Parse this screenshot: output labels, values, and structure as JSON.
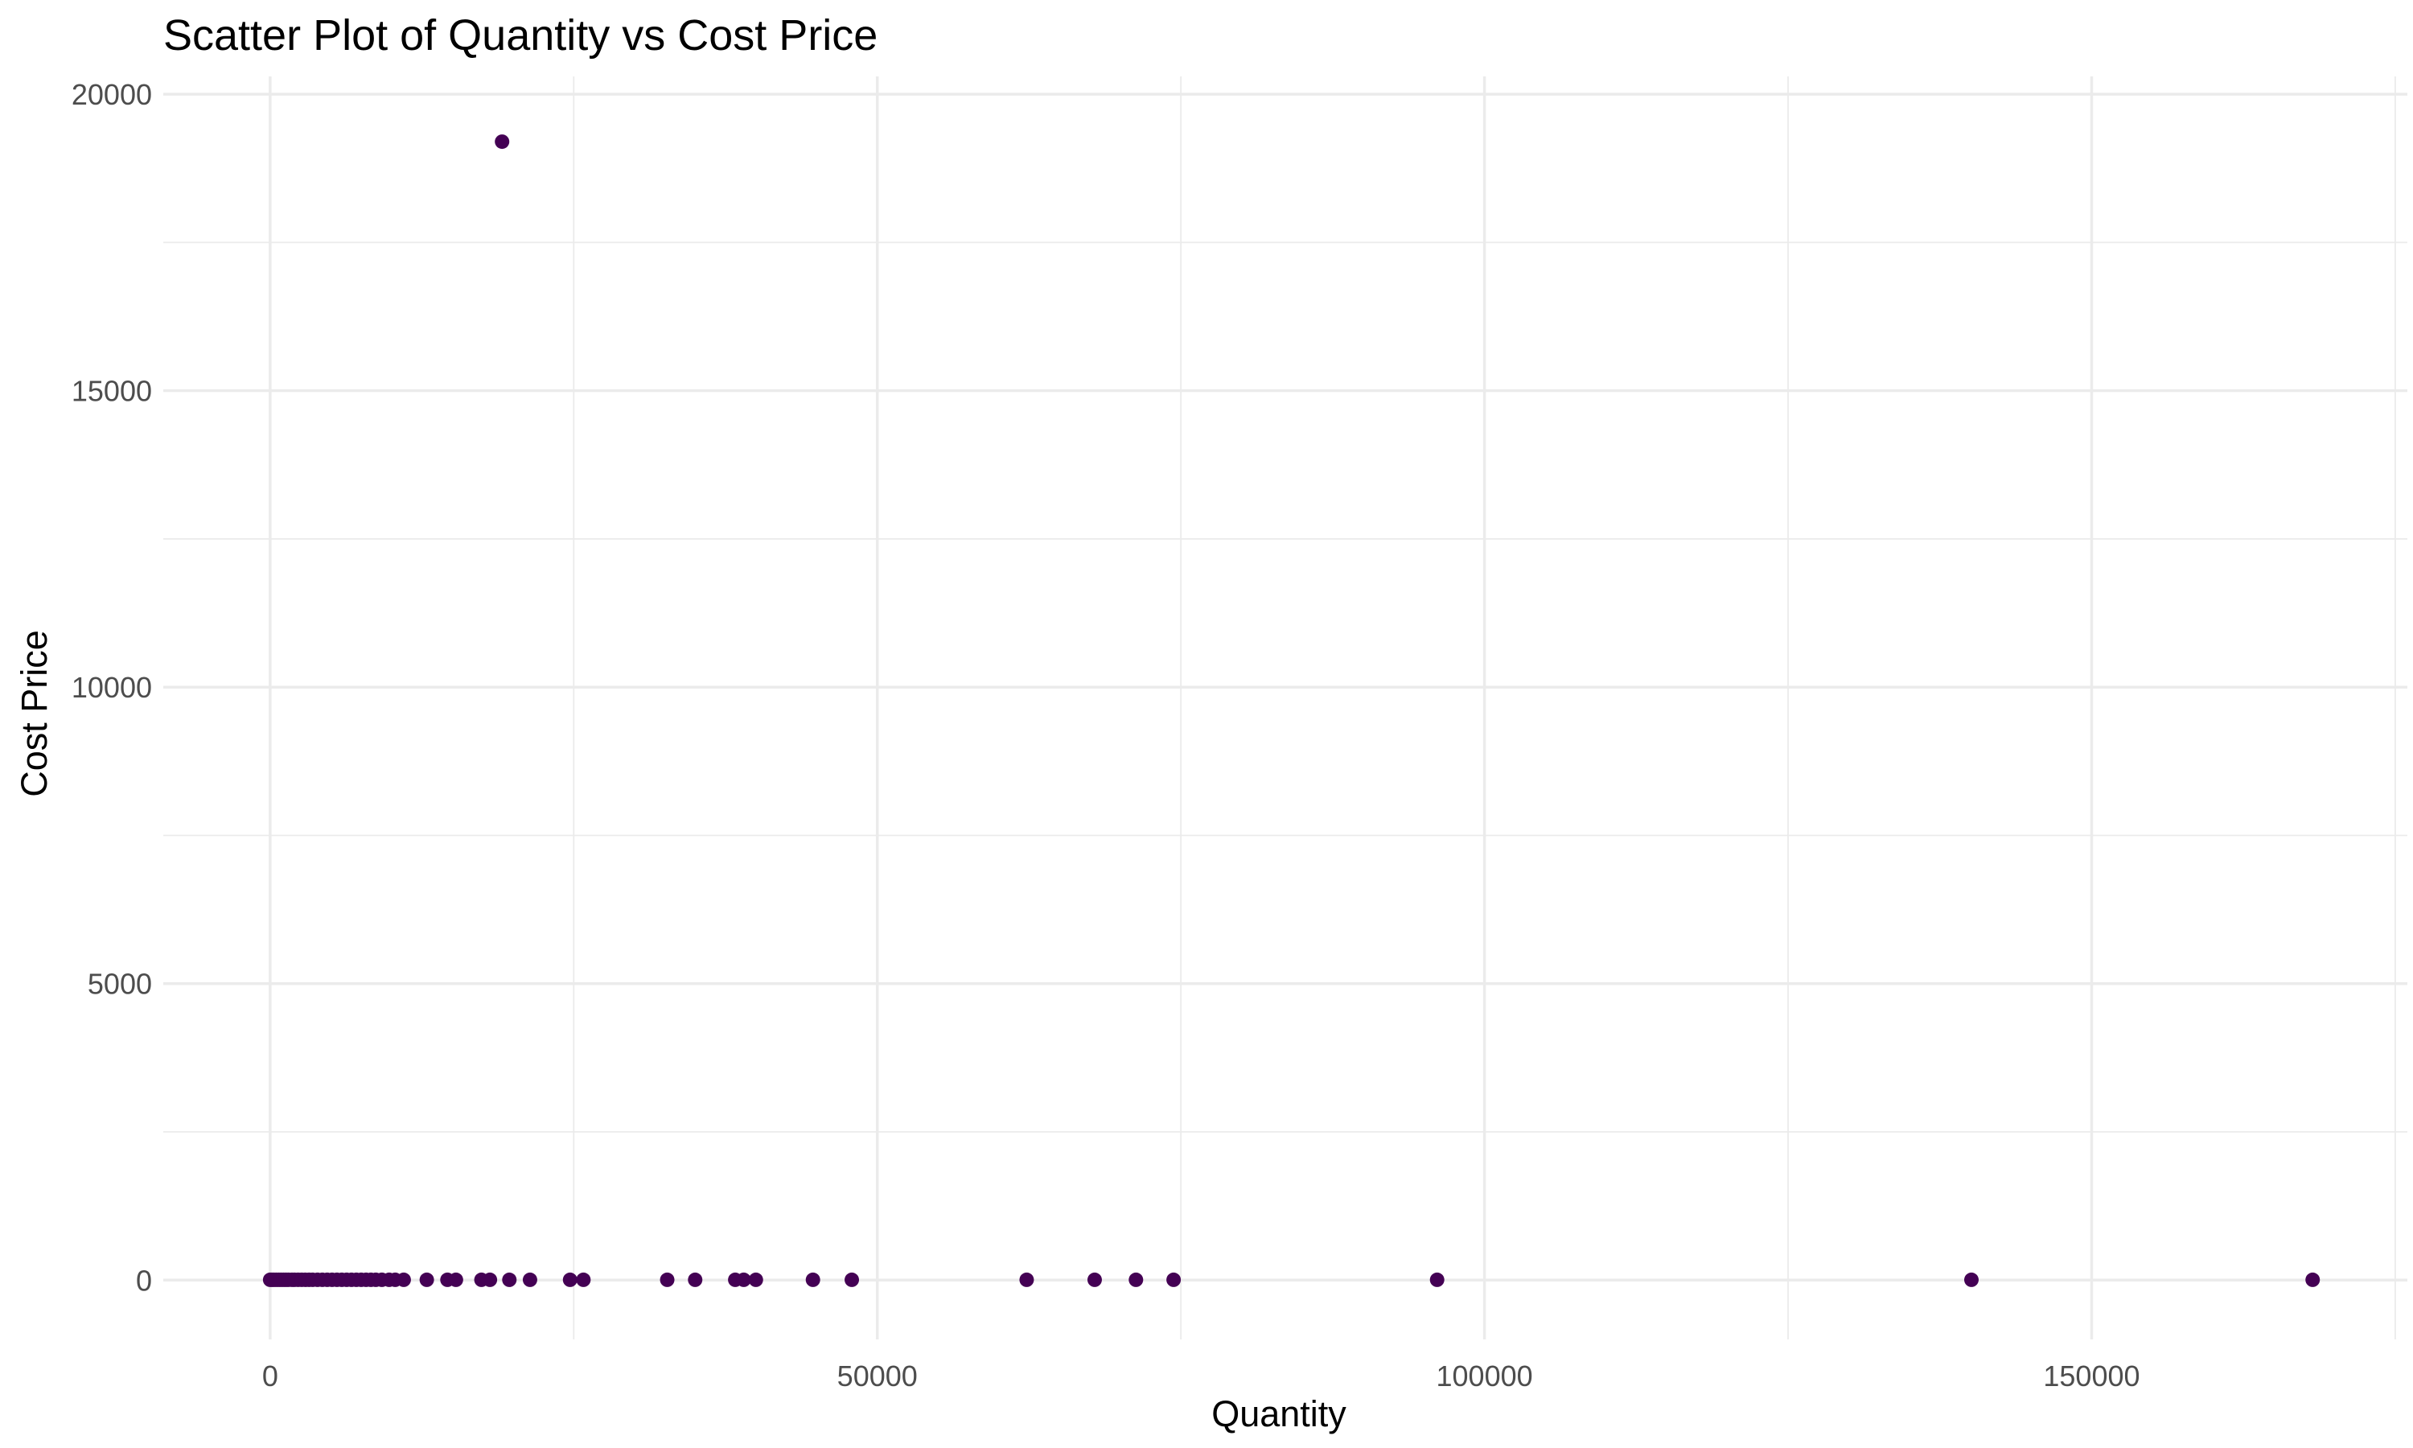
{
  "chart_data": {
    "type": "scatter",
    "title": "Scatter Plot of Quantity vs Cost Price",
    "xlabel": "Quantity",
    "ylabel": "Cost Price",
    "xlim": [
      -8800,
      176000
    ],
    "ylim": [
      -1000,
      20300
    ],
    "x_ticks": [
      0,
      50000,
      100000,
      150000
    ],
    "x_tick_labels": [
      "0",
      "50000",
      "100000",
      "150000"
    ],
    "x_minor_ticks": [
      25000,
      75000,
      125000,
      175000
    ],
    "y_ticks": [
      0,
      5000,
      10000,
      15000,
      20000
    ],
    "y_tick_labels": [
      "0",
      "5000",
      "10000",
      "15000",
      "20000"
    ],
    "y_minor_ticks": [
      2500,
      7500,
      12500,
      17500
    ],
    "grid": true,
    "legend": "none",
    "point_color": "#440154",
    "points": [
      {
        "x": 19100,
        "y": 19200
      },
      {
        "x": 0,
        "y": 5
      },
      {
        "x": 150,
        "y": 5
      },
      {
        "x": 300,
        "y": 5
      },
      {
        "x": 500,
        "y": 5
      },
      {
        "x": 700,
        "y": 5
      },
      {
        "x": 900,
        "y": 5
      },
      {
        "x": 1100,
        "y": 5
      },
      {
        "x": 1300,
        "y": 5
      },
      {
        "x": 1500,
        "y": 5
      },
      {
        "x": 1800,
        "y": 5
      },
      {
        "x": 2000,
        "y": 5
      },
      {
        "x": 2300,
        "y": 5
      },
      {
        "x": 2600,
        "y": 5
      },
      {
        "x": 2900,
        "y": 5
      },
      {
        "x": 3200,
        "y": 5
      },
      {
        "x": 3500,
        "y": 5
      },
      {
        "x": 3900,
        "y": 5
      },
      {
        "x": 4300,
        "y": 5
      },
      {
        "x": 4700,
        "y": 5
      },
      {
        "x": 5100,
        "y": 5
      },
      {
        "x": 5500,
        "y": 5
      },
      {
        "x": 5900,
        "y": 5
      },
      {
        "x": 6300,
        "y": 5
      },
      {
        "x": 6700,
        "y": 5
      },
      {
        "x": 7100,
        "y": 5
      },
      {
        "x": 7500,
        "y": 5
      },
      {
        "x": 7900,
        "y": 5
      },
      {
        "x": 8300,
        "y": 5
      },
      {
        "x": 8700,
        "y": 5
      },
      {
        "x": 9200,
        "y": 5
      },
      {
        "x": 9800,
        "y": 5
      },
      {
        "x": 10300,
        "y": 5
      },
      {
        "x": 11000,
        "y": 5
      },
      {
        "x": 12900,
        "y": 5
      },
      {
        "x": 14600,
        "y": 5
      },
      {
        "x": 15300,
        "y": 5
      },
      {
        "x": 17400,
        "y": 5
      },
      {
        "x": 18100,
        "y": 5
      },
      {
        "x": 19700,
        "y": 5
      },
      {
        "x": 21400,
        "y": 5
      },
      {
        "x": 24700,
        "y": 5
      },
      {
        "x": 25800,
        "y": 5
      },
      {
        "x": 32700,
        "y": 5
      },
      {
        "x": 35000,
        "y": 5
      },
      {
        "x": 38300,
        "y": 5
      },
      {
        "x": 39000,
        "y": 5
      },
      {
        "x": 40000,
        "y": 5
      },
      {
        "x": 44700,
        "y": 5
      },
      {
        "x": 47900,
        "y": 5
      },
      {
        "x": 62300,
        "y": 5
      },
      {
        "x": 67900,
        "y": 5
      },
      {
        "x": 71300,
        "y": 5
      },
      {
        "x": 74400,
        "y": 5
      },
      {
        "x": 96100,
        "y": 5
      },
      {
        "x": 140100,
        "y": 5
      },
      {
        "x": 168200,
        "y": 5
      }
    ]
  }
}
